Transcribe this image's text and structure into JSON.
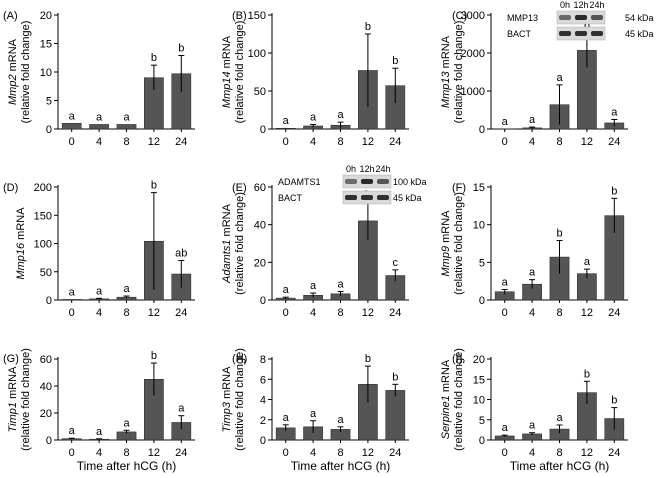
{
  "figure": {
    "x_title": "Time after hCG (h)"
  },
  "chart_data": [
    {
      "type": "bar",
      "panel": "(A)",
      "gene": "Mmp2",
      "ylabel_suffix": " mRNA",
      "ylabel2": "(relative fold change)",
      "categories": [
        "0",
        "4",
        "8",
        "12",
        "24"
      ],
      "values": [
        1,
        0.8,
        0.8,
        9,
        9.7
      ],
      "errors": [
        0,
        0,
        0,
        2.2,
        3.2
      ],
      "letters": [
        "a",
        "a",
        "a",
        "b",
        "b"
      ],
      "ylim": [
        0,
        20
      ],
      "yticks": [
        0,
        5,
        10,
        15,
        20
      ]
    },
    {
      "type": "bar",
      "panel": "(B)",
      "gene": "Mmp14",
      "ylabel_suffix": " mRNA",
      "ylabel2": "(relative fold change)",
      "categories": [
        "0",
        "4",
        "8",
        "12",
        "24"
      ],
      "values": [
        1,
        4,
        5,
        77,
        57
      ],
      "errors": [
        0,
        2,
        4,
        48,
        23
      ],
      "letters": [
        "a",
        "a",
        "a",
        "b",
        "b"
      ],
      "ylim": [
        0,
        150
      ],
      "yticks": [
        0,
        50,
        100,
        150
      ]
    },
    {
      "type": "bar",
      "panel": "(C)",
      "gene": "Mmp13",
      "ylabel_suffix": " mRNA",
      "ylabel2": "(relative fold change)",
      "categories": [
        "0",
        "4",
        "8",
        "12",
        "24"
      ],
      "values": [
        5,
        30,
        640,
        2070,
        160
      ],
      "errors": [
        0,
        20,
        520,
        450,
        90
      ],
      "letters": [
        "a",
        "a",
        "a",
        "b",
        "a"
      ],
      "ylim": [
        0,
        3000
      ],
      "yticks": [
        0,
        1000,
        2000,
        3000
      ],
      "blot": {
        "lanes": [
          "0h",
          "12h",
          "24h"
        ],
        "rows": [
          "MMP13",
          "BACT"
        ],
        "sizes": [
          "54 kDa",
          "45 kDa"
        ]
      }
    },
    {
      "type": "bar",
      "panel": "(D)",
      "gene": "Mmp16",
      "ylabel_suffix": " mRNA",
      "ylabel2": "",
      "categories": [
        "0",
        "4",
        "8",
        "12",
        "24"
      ],
      "values": [
        1,
        2,
        5,
        104,
        46
      ],
      "errors": [
        0,
        1,
        2,
        86,
        24
      ],
      "letters": [
        "a",
        "a",
        "a",
        "b",
        "ab"
      ],
      "ylim": [
        0,
        200
      ],
      "yticks": [
        0,
        50,
        100,
        150,
        200
      ]
    },
    {
      "type": "bar",
      "panel": "(E)",
      "gene": "Adamts1",
      "ylabel_suffix": " mRNA",
      "ylabel2": "(relative fold change)",
      "categories": [
        "0",
        "4",
        "8",
        "12",
        "24"
      ],
      "values": [
        1,
        2.5,
        3.3,
        42,
        13
      ],
      "errors": [
        0.5,
        1.2,
        1.2,
        10,
        3
      ],
      "letters": [
        "a",
        "a",
        "a",
        "b",
        "c"
      ],
      "ylim": [
        0,
        60
      ],
      "yticks": [
        0,
        20,
        40,
        60
      ],
      "blot": {
        "lanes": [
          "0h",
          "12h",
          "24h"
        ],
        "rows": [
          "ADAMTS1",
          "BACT"
        ],
        "sizes": [
          "100 kDa",
          "45 kDa"
        ]
      }
    },
    {
      "type": "bar",
      "panel": "(F)",
      "gene": "Mmp9",
      "ylabel_suffix": " mRNA",
      "ylabel2": "(relative fold change)",
      "categories": [
        "0",
        "4",
        "8",
        "12",
        "24"
      ],
      "values": [
        1.1,
        2.1,
        5.7,
        3.5,
        11.2
      ],
      "errors": [
        0.3,
        0.6,
        2.2,
        0.6,
        2.3
      ],
      "letters": [
        "a",
        "a",
        "b",
        "a",
        "b"
      ],
      "ylim": [
        0,
        15
      ],
      "yticks": [
        0,
        5,
        10,
        15
      ]
    },
    {
      "type": "bar",
      "panel": "(G)",
      "gene": "Timp1",
      "ylabel_suffix": " mRNA",
      "ylabel2": "(relative fold change)",
      "categories": [
        "0",
        "4",
        "8",
        "12",
        "24"
      ],
      "values": [
        1,
        0.6,
        6,
        45,
        13
      ],
      "errors": [
        0.3,
        0.3,
        1.2,
        12,
        5
      ],
      "letters": [
        "a",
        "a",
        "a",
        "b",
        "a"
      ],
      "ylim": [
        0,
        60
      ],
      "yticks": [
        0,
        20,
        40,
        60
      ]
    },
    {
      "type": "bar",
      "panel": "(H)",
      "gene": "Timp3",
      "ylabel_suffix": " mRNA",
      "ylabel2": "(relative fold change)",
      "categories": [
        "0",
        "4",
        "8",
        "12",
        "24"
      ],
      "values": [
        1.2,
        1.3,
        1.05,
        5.5,
        4.9
      ],
      "errors": [
        0.3,
        0.6,
        0.25,
        1.8,
        0.6
      ],
      "letters": [
        "a",
        "a",
        "a",
        "b",
        "b"
      ],
      "ylim": [
        0,
        8
      ],
      "yticks": [
        0,
        2,
        4,
        6,
        8
      ]
    },
    {
      "type": "bar",
      "panel": "(I)",
      "gene": "Serpine1",
      "ylabel_suffix": " mRNA",
      "ylabel2": "(relative fold change)",
      "categories": [
        "0",
        "4",
        "8",
        "12",
        "24"
      ],
      "values": [
        1,
        1.5,
        2.7,
        11.7,
        5.3
      ],
      "errors": [
        0.2,
        0.3,
        1,
        2.8,
        2.7
      ],
      "letters": [
        "a",
        "a",
        "a",
        "b",
        "b"
      ],
      "ylim": [
        0,
        20
      ],
      "yticks": [
        0,
        5,
        10,
        15,
        20
      ]
    }
  ]
}
